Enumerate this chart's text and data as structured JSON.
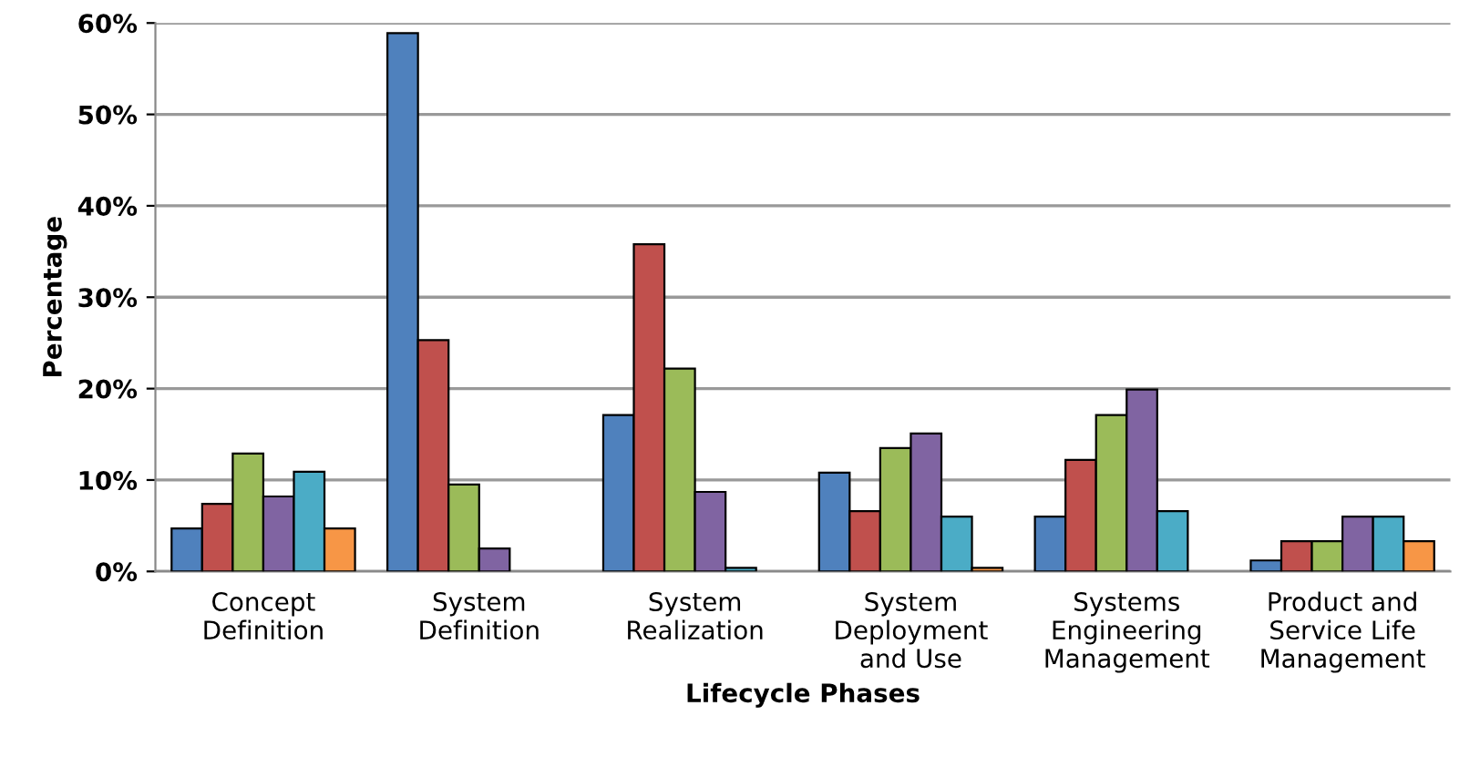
{
  "chart_data": {
    "type": "bar",
    "xlabel": "Lifecycle Phases",
    "ylabel": "Percentage",
    "categories": [
      "Concept\nDefinition",
      "System\nDefinition",
      "System\nRealization",
      "System\nDeployment\nand Use",
      "Systems\nEngineering\nManagement",
      "Product and\nService Life\nManagement"
    ],
    "series": [
      {
        "color": "#4f81bd",
        "values": [
          4.7,
          58.9,
          17.1,
          10.8,
          6.0,
          1.2
        ]
      },
      {
        "color": "#c0504d",
        "values": [
          7.4,
          25.3,
          35.8,
          6.6,
          12.2,
          3.3
        ]
      },
      {
        "color": "#9bbb59",
        "values": [
          12.9,
          9.5,
          22.2,
          13.5,
          17.1,
          3.3
        ]
      },
      {
        "color": "#8064a2",
        "values": [
          8.2,
          2.5,
          8.7,
          15.1,
          19.9,
          6.0
        ]
      },
      {
        "color": "#4bacc6",
        "values": [
          10.9,
          null,
          0.4,
          6.0,
          6.6,
          6.0
        ]
      },
      {
        "color": "#f79646",
        "values": [
          4.7,
          null,
          null,
          0.4,
          null,
          3.3
        ]
      }
    ],
    "ylim": [
      0,
      60
    ],
    "yticks": [
      {
        "value": 0,
        "label": "0%"
      },
      {
        "value": 10,
        "label": "10%"
      },
      {
        "value": 20,
        "label": "20%"
      },
      {
        "value": 30,
        "label": "30%"
      },
      {
        "value": 40,
        "label": "40%"
      },
      {
        "value": 50,
        "label": "50%"
      },
      {
        "value": 60,
        "label": "60%"
      }
    ],
    "grid": "y",
    "legend": false
  }
}
